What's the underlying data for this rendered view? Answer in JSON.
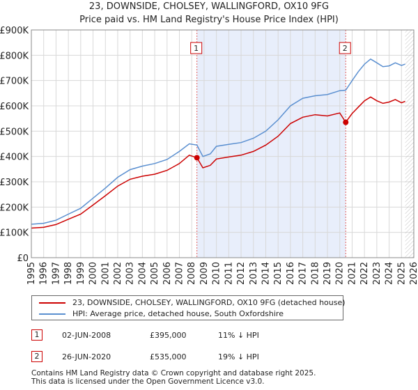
{
  "chart_data": {
    "type": "line",
    "title": "23, DOWNSIDE, CHOLSEY, WALLINGFORD, OX10 9FG",
    "subtitle": "Price paid vs. HM Land Registry's House Price Index (HPI)",
    "xlim": [
      1995,
      2026
    ],
    "ylim": [
      0,
      900000
    ],
    "x_ticks": [
      "1995",
      "1996",
      "1997",
      "1998",
      "1999",
      "2000",
      "2001",
      "2002",
      "2003",
      "2004",
      "2005",
      "2006",
      "2007",
      "2008",
      "2009",
      "2010",
      "2011",
      "2012",
      "2013",
      "2014",
      "2015",
      "2016",
      "2017",
      "2018",
      "2019",
      "2020",
      "2021",
      "2022",
      "2023",
      "2024",
      "2025",
      "2026"
    ],
    "y_ticks": [
      {
        "value": 0,
        "label": "£0"
      },
      {
        "value": 100000,
        "label": "£100K"
      },
      {
        "value": 200000,
        "label": "£200K"
      },
      {
        "value": 300000,
        "label": "£300K"
      },
      {
        "value": 400000,
        "label": "£400K"
      },
      {
        "value": 500000,
        "label": "£500K"
      },
      {
        "value": 600000,
        "label": "£600K"
      },
      {
        "value": 700000,
        "label": "£700K"
      },
      {
        "value": 800000,
        "label": "£800K"
      },
      {
        "value": 900000,
        "label": "£900K"
      }
    ],
    "grid": true,
    "shaded_range": [
      2008.42,
      2020.48
    ],
    "data_end": 2025.3,
    "series": [
      {
        "name": "23, DOWNSIDE, CHOLSEY, WALLINGFORD, OX10 9FG (detached house)",
        "color": "#cc0000",
        "points": [
          [
            1995.0,
            117000
          ],
          [
            1996.0,
            120000
          ],
          [
            1997.0,
            131000
          ],
          [
            1998.0,
            152000
          ],
          [
            1999.0,
            172000
          ],
          [
            2000.0,
            208000
          ],
          [
            2001.0,
            245000
          ],
          [
            2002.0,
            283000
          ],
          [
            2003.0,
            310000
          ],
          [
            2004.0,
            322000
          ],
          [
            2005.0,
            330000
          ],
          [
            2006.0,
            345000
          ],
          [
            2007.0,
            372000
          ],
          [
            2007.8,
            405000
          ],
          [
            2008.42,
            395000
          ],
          [
            2008.9,
            355000
          ],
          [
            2009.5,
            365000
          ],
          [
            2010.0,
            390000
          ],
          [
            2011.0,
            398000
          ],
          [
            2012.0,
            405000
          ],
          [
            2013.0,
            420000
          ],
          [
            2014.0,
            445000
          ],
          [
            2015.0,
            480000
          ],
          [
            2016.0,
            530000
          ],
          [
            2017.0,
            555000
          ],
          [
            2018.0,
            565000
          ],
          [
            2019.0,
            560000
          ],
          [
            2020.0,
            572000
          ],
          [
            2020.48,
            535000
          ],
          [
            2021.0,
            570000
          ],
          [
            2021.5,
            595000
          ],
          [
            2022.0,
            620000
          ],
          [
            2022.5,
            635000
          ],
          [
            2023.0,
            620000
          ],
          [
            2023.5,
            610000
          ],
          [
            2024.0,
            615000
          ],
          [
            2024.5,
            625000
          ],
          [
            2025.0,
            612000
          ],
          [
            2025.3,
            618000
          ]
        ]
      },
      {
        "name": "HPI: Average price, detached house, South Oxfordshire",
        "color": "#5a8fd0",
        "points": [
          [
            1995.0,
            132000
          ],
          [
            1996.0,
            136000
          ],
          [
            1997.0,
            148000
          ],
          [
            1998.0,
            172000
          ],
          [
            1999.0,
            195000
          ],
          [
            2000.0,
            235000
          ],
          [
            2001.0,
            275000
          ],
          [
            2002.0,
            318000
          ],
          [
            2003.0,
            348000
          ],
          [
            2004.0,
            362000
          ],
          [
            2005.0,
            372000
          ],
          [
            2006.0,
            388000
          ],
          [
            2007.0,
            420000
          ],
          [
            2007.8,
            450000
          ],
          [
            2008.42,
            445000
          ],
          [
            2008.9,
            400000
          ],
          [
            2009.5,
            410000
          ],
          [
            2010.0,
            440000
          ],
          [
            2011.0,
            448000
          ],
          [
            2012.0,
            455000
          ],
          [
            2013.0,
            472000
          ],
          [
            2014.0,
            500000
          ],
          [
            2015.0,
            545000
          ],
          [
            2016.0,
            600000
          ],
          [
            2017.0,
            630000
          ],
          [
            2018.0,
            640000
          ],
          [
            2019.0,
            645000
          ],
          [
            2020.0,
            660000
          ],
          [
            2020.48,
            662000
          ],
          [
            2021.0,
            700000
          ],
          [
            2021.5,
            735000
          ],
          [
            2022.0,
            765000
          ],
          [
            2022.5,
            785000
          ],
          [
            2023.0,
            770000
          ],
          [
            2023.5,
            755000
          ],
          [
            2024.0,
            758000
          ],
          [
            2024.5,
            770000
          ],
          [
            2025.0,
            760000
          ],
          [
            2025.3,
            765000
          ]
        ]
      }
    ],
    "sales": [
      {
        "marker": "1",
        "x": 2008.42,
        "value": 395000
      },
      {
        "marker": "2",
        "x": 2020.48,
        "value": 535000
      }
    ]
  },
  "legend": {
    "items": [
      {
        "label": "23, DOWNSIDE, CHOLSEY, WALLINGFORD, OX10 9FG (detached house)",
        "color": "#cc0000"
      },
      {
        "label": "HPI: Average price, detached house, South Oxfordshire",
        "color": "#5a8fd0"
      }
    ]
  },
  "sales_table": [
    {
      "marker": "1",
      "date": "02-JUN-2008",
      "price": "£395,000",
      "hpi": "11% ↓ HPI"
    },
    {
      "marker": "2",
      "date": "26-JUN-2020",
      "price": "£535,000",
      "hpi": "19% ↓ HPI"
    }
  ],
  "footer": {
    "line1": "Contains HM Land Registry data © Crown copyright and database right 2025.",
    "line2": "This data is licensed under the Open Government Licence v3.0."
  }
}
